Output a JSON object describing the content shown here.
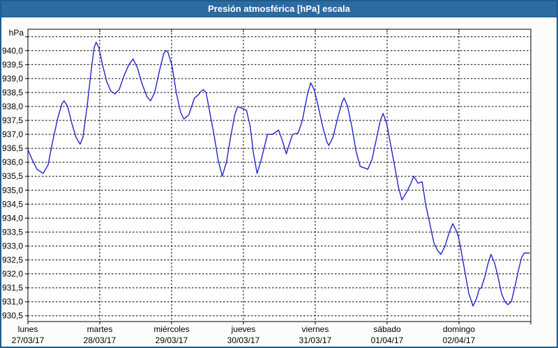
{
  "window": {
    "title": "Presión atmosférica [hPa] escala",
    "titlebar_color": "#2b6ba2",
    "border_color": "#1d5d8c",
    "background_color": "#fcfdfb"
  },
  "chart_data": {
    "type": "line",
    "title": "Presión atmosférica [hPa] escala",
    "ylabel": "hPa",
    "xlabel": "",
    "legend": "none",
    "grid": "dashed-black",
    "line_color": "#2323cc",
    "axis_color": "#000000",
    "plot_bg": "#ffffff",
    "ylim": [
      930.25,
      940.75
    ],
    "y_gridline_max": 940.5,
    "y_gridline_min": 930.5,
    "y_step": 0.5,
    "y_tick_labels": [
      "940,0",
      "939,5",
      "939,0",
      "938,5",
      "938,0",
      "937,5",
      "937,0",
      "936,5",
      "936,0",
      "935,5",
      "935,0",
      "934,5",
      "934,0",
      "933,5",
      "933,0",
      "932,5",
      "932,0",
      "931,5",
      "931,0",
      "930,5"
    ],
    "x_categories": [
      {
        "day": "lunes",
        "date": "27/03/17"
      },
      {
        "day": "martes",
        "date": "28/03/17"
      },
      {
        "day": "miércoles",
        "date": "29/03/17"
      },
      {
        "day": "jueves",
        "date": "30/03/17"
      },
      {
        "day": "viernes",
        "date": "31/03/17"
      },
      {
        "day": "sábado",
        "date": "01/04/17"
      },
      {
        "day": "domingo",
        "date": "02/04/17"
      }
    ],
    "xlim_days": [
      0,
      7
    ],
    "series": [
      {
        "name": "presión atmosférica [hPa]",
        "points": [
          [
            0.0,
            936.45
          ],
          [
            0.058,
            936.1
          ],
          [
            0.126,
            935.75
          ],
          [
            0.213,
            935.6
          ],
          [
            0.281,
            935.9
          ],
          [
            0.349,
            936.8
          ],
          [
            0.417,
            937.6
          ],
          [
            0.475,
            938.1
          ],
          [
            0.504,
            938.2
          ],
          [
            0.553,
            938.0
          ],
          [
            0.611,
            937.4
          ],
          [
            0.669,
            936.9
          ],
          [
            0.727,
            936.65
          ],
          [
            0.766,
            936.9
          ],
          [
            0.824,
            938.0
          ],
          [
            0.882,
            939.3
          ],
          [
            0.921,
            940.1
          ],
          [
            0.95,
            940.3
          ],
          [
            0.989,
            940.1
          ],
          [
            1.038,
            939.5
          ],
          [
            1.096,
            938.9
          ],
          [
            1.154,
            938.55
          ],
          [
            1.212,
            938.45
          ],
          [
            1.27,
            938.6
          ],
          [
            1.338,
            939.1
          ],
          [
            1.406,
            939.5
          ],
          [
            1.464,
            939.7
          ],
          [
            1.522,
            939.4
          ],
          [
            1.59,
            938.8
          ],
          [
            1.658,
            938.35
          ],
          [
            1.707,
            938.2
          ],
          [
            1.765,
            938.5
          ],
          [
            1.833,
            939.3
          ],
          [
            1.891,
            939.9
          ],
          [
            1.92,
            940.0
          ],
          [
            1.949,
            939.95
          ],
          [
            2.007,
            939.45
          ],
          [
            2.065,
            938.5
          ],
          [
            2.124,
            937.8
          ],
          [
            2.172,
            937.55
          ],
          [
            2.24,
            937.7
          ],
          [
            2.317,
            938.3
          ],
          [
            2.366,
            938.4
          ],
          [
            2.414,
            938.55
          ],
          [
            2.443,
            938.6
          ],
          [
            2.48,
            938.5
          ],
          [
            2.531,
            937.8
          ],
          [
            2.589,
            937.0
          ],
          [
            2.647,
            936.1
          ],
          [
            2.705,
            935.5
          ],
          [
            2.763,
            936.0
          ],
          [
            2.821,
            936.9
          ],
          [
            2.88,
            937.7
          ],
          [
            2.918,
            938.0
          ],
          [
            2.967,
            937.95
          ],
          [
            3.015,
            937.9
          ],
          [
            3.044,
            937.85
          ],
          [
            3.093,
            937.3
          ],
          [
            3.141,
            936.3
          ],
          [
            3.19,
            935.6
          ],
          [
            3.238,
            936.0
          ],
          [
            3.287,
            936.5
          ],
          [
            3.335,
            937.0
          ],
          [
            3.403,
            937.0
          ],
          [
            3.461,
            937.1
          ],
          [
            3.49,
            937.15
          ],
          [
            3.539,
            936.8
          ],
          [
            3.597,
            936.3
          ],
          [
            3.645,
            936.7
          ],
          [
            3.684,
            937.0
          ],
          [
            3.762,
            937.05
          ],
          [
            3.82,
            937.5
          ],
          [
            3.888,
            938.4
          ],
          [
            3.936,
            938.85
          ],
          [
            3.985,
            938.6
          ],
          [
            4.033,
            938.1
          ],
          [
            4.101,
            937.3
          ],
          [
            4.159,
            936.75
          ],
          [
            4.188,
            936.6
          ],
          [
            4.247,
            936.9
          ],
          [
            4.314,
            937.6
          ],
          [
            4.373,
            938.15
          ],
          [
            4.402,
            938.3
          ],
          [
            4.45,
            938.0
          ],
          [
            4.508,
            937.3
          ],
          [
            4.567,
            936.4
          ],
          [
            4.625,
            935.85
          ],
          [
            4.683,
            935.8
          ],
          [
            4.731,
            935.75
          ],
          [
            4.79,
            936.1
          ],
          [
            4.848,
            936.8
          ],
          [
            4.906,
            937.5
          ],
          [
            4.945,
            937.75
          ],
          [
            4.993,
            937.4
          ],
          [
            5.051,
            936.6
          ],
          [
            5.11,
            935.8
          ],
          [
            5.158,
            935.1
          ],
          [
            5.206,
            934.65
          ],
          [
            5.265,
            934.9
          ],
          [
            5.323,
            935.2
          ],
          [
            5.371,
            935.5
          ],
          [
            5.429,
            935.25
          ],
          [
            5.488,
            935.3
          ],
          [
            5.536,
            934.5
          ],
          [
            5.594,
            933.8
          ],
          [
            5.652,
            933.1
          ],
          [
            5.701,
            932.85
          ],
          [
            5.749,
            932.7
          ],
          [
            5.807,
            933.0
          ],
          [
            5.866,
            933.5
          ],
          [
            5.914,
            933.8
          ],
          [
            5.953,
            933.6
          ],
          [
            5.991,
            933.35
          ],
          [
            6.04,
            932.7
          ],
          [
            6.088,
            932.0
          ],
          [
            6.137,
            931.3
          ],
          [
            6.195,
            930.85
          ],
          [
            6.243,
            931.1
          ],
          [
            6.282,
            931.45
          ],
          [
            6.311,
            931.5
          ],
          [
            6.36,
            931.9
          ],
          [
            6.408,
            932.4
          ],
          [
            6.447,
            932.7
          ],
          [
            6.495,
            932.4
          ],
          [
            6.544,
            931.9
          ],
          [
            6.592,
            931.3
          ],
          [
            6.641,
            931.0
          ],
          [
            6.679,
            930.9
          ],
          [
            6.728,
            931.0
          ],
          [
            6.776,
            931.5
          ],
          [
            6.825,
            932.1
          ],
          [
            6.873,
            932.6
          ],
          [
            6.912,
            932.75
          ],
          [
            6.98,
            932.75
          ]
        ]
      }
    ]
  }
}
